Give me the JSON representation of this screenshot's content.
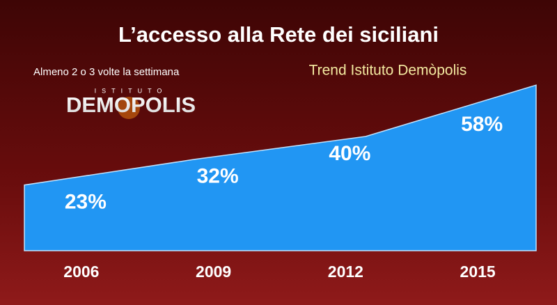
{
  "chart_data": {
    "type": "area",
    "title": "L’accesso alla Rete dei siciliani",
    "subtitle": "Almeno 2 o 3 volte la settimana",
    "annotation": "Trend Istituto Demòpolis",
    "categories": [
      "2006",
      "2009",
      "2012",
      "2015"
    ],
    "values": [
      23,
      32,
      40,
      58
    ],
    "value_labels": [
      "23%",
      "32%",
      "40%",
      "58%"
    ],
    "color": "#2196f3",
    "ylim": [
      0,
      60
    ]
  },
  "logo": {
    "top": "ISTITUTO",
    "name": "DEMOPOLIS"
  }
}
